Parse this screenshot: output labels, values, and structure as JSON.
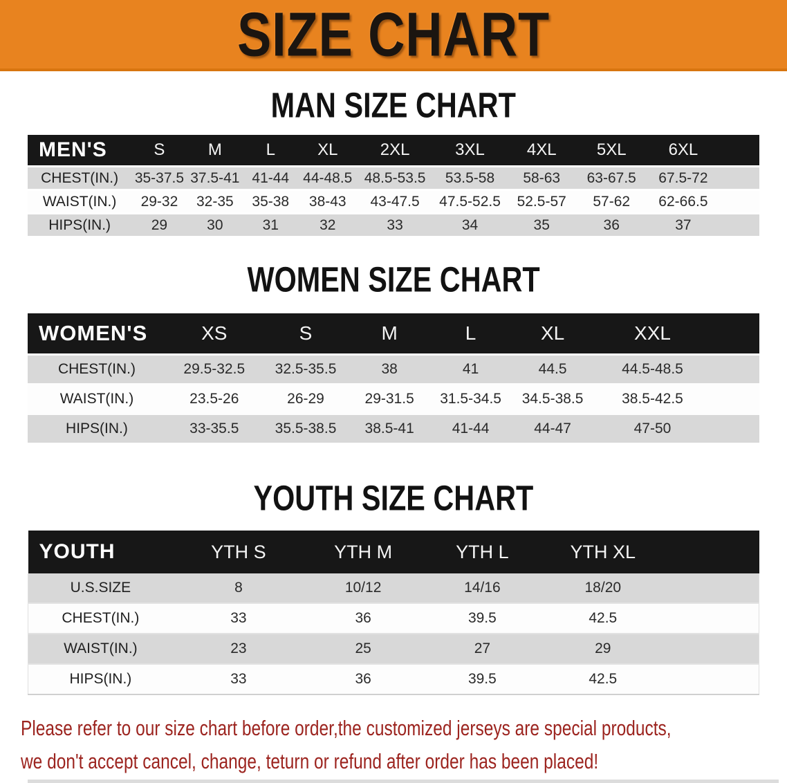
{
  "banner": {
    "title": "SIZE CHART",
    "background_color": "#e8831f",
    "title_color": "#1b1510"
  },
  "sections": [
    {
      "heading": "MAN SIZE CHART",
      "table": {
        "corner_label": "MEN'S",
        "columns": [
          "S",
          "M",
          "L",
          "XL",
          "2XL",
          "3XL",
          "4XL",
          "5XL",
          "6XL"
        ],
        "rows": [
          {
            "label": "CHEST(IN.)",
            "values": [
              "35-37.5",
              "37.5-41",
              "41-44",
              "44-48.5",
              "48.5-53.5",
              "53.5-58",
              "58-63",
              "63-67.5",
              "67.5-72"
            ]
          },
          {
            "label": "WAIST(IN.)",
            "values": [
              "29-32",
              "32-35",
              "35-38",
              "38-43",
              "43-47.5",
              "47.5-52.5",
              "52.5-57",
              "57-62",
              "62-66.5"
            ]
          },
          {
            "label": "HIPS(IN.)",
            "values": [
              "29",
              "30",
              "31",
              "32",
              "33",
              "34",
              "35",
              "36",
              "37"
            ]
          }
        ]
      }
    },
    {
      "heading": "WOMEN SIZE CHART",
      "table": {
        "corner_label": "WOMEN'S",
        "columns": [
          "XS",
          "S",
          "M",
          "L",
          "XL",
          "XXL"
        ],
        "rows": [
          {
            "label": "CHEST(IN.)",
            "values": [
              "29.5-32.5",
              "32.5-35.5",
              "38",
              "41",
              "44.5",
              "44.5-48.5"
            ]
          },
          {
            "label": "WAIST(IN.)",
            "values": [
              "23.5-26",
              "26-29",
              "29-31.5",
              "31.5-34.5",
              "34.5-38.5",
              "38.5-42.5"
            ]
          },
          {
            "label": "HIPS(IN.)",
            "values": [
              "33-35.5",
              "35.5-38.5",
              "38.5-41",
              "41-44",
              "44-47",
              "47-50"
            ]
          }
        ]
      }
    },
    {
      "heading": "YOUTH SIZE CHART",
      "table": {
        "corner_label": "YOUTH",
        "columns": [
          "YTH S",
          "YTH M",
          "YTH L",
          "YTH XL"
        ],
        "rows": [
          {
            "label": "U.S.SIZE",
            "values": [
              "8",
              "10/12",
              "14/16",
              "18/20"
            ]
          },
          {
            "label": "CHEST(IN.)",
            "values": [
              "33",
              "36",
              "39.5",
              "42.5"
            ]
          },
          {
            "label": "WAIST(IN.)",
            "values": [
              "23",
              "25",
              "27",
              "29"
            ]
          },
          {
            "label": "HIPS(IN.)",
            "values": [
              "33",
              "36",
              "39.5",
              "42.5"
            ]
          }
        ]
      }
    }
  ],
  "disclaimer": {
    "line1": "Please refer to our size chart before order,the customized jerseys are special products,",
    "line2": "we don't accept cancel, change, teturn or refund after order has been placed!",
    "text_color": "#9c241f"
  },
  "colors": {
    "header_bar": "#171717",
    "row_shade": "#d8d8d8",
    "row_plain": "#fdfdfd"
  }
}
